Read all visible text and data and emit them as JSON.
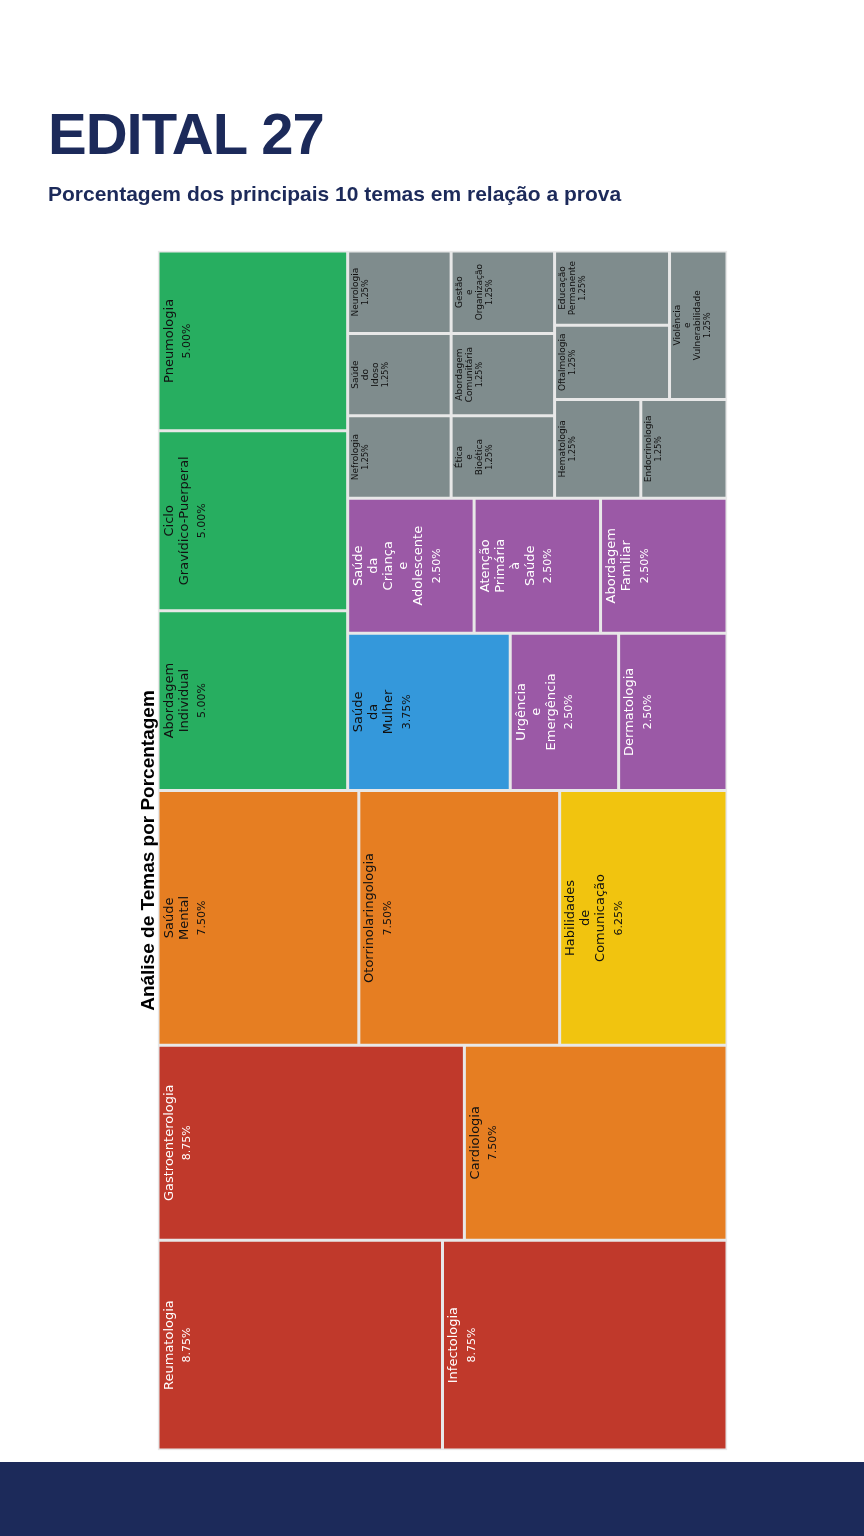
{
  "chart_data": {
    "type": "other",
    "title": "EDITAL 27",
    "subtitle": "Porcentagem dos principais 10 temas em relação a prova",
    "annotations": [
      "Análise de Temas por Porcentagem"
    ],
    "categories": [
      "Reumatologia",
      "Infectologia",
      "Gastroenterologia",
      "Cardiologia",
      "Saúde Mental",
      "Otorrinolaringologia",
      "Habilidades de Comunicação",
      "Abordagem Individual",
      "Ciclo Gravídico-Puerperal",
      "Pneumologia",
      "Saúde da Mulher",
      "Urgência e Emergência",
      "Dermatologia",
      "Saúde da Criança e Adolescente",
      "Atenção Primária à Saúde",
      "Abordagem Familiar",
      "Nefrologia",
      "Saúde do Idoso",
      "Neurologia",
      "Ética e Bioética",
      "Abordagem Comunitária",
      "Gestão e Organização",
      "Hematologia",
      "Endocrinologia",
      "Oftalmologia",
      "Educação Permanente",
      "Violência e Vulnerabilidade"
    ],
    "values": [
      8.75,
      8.75,
      8.75,
      7.5,
      7.5,
      7.5,
      6.25,
      5,
      5,
      5,
      3.75,
      2.5,
      2.5,
      2.5,
      2.5,
      2.5,
      1.25,
      1.25,
      1.25,
      1.25,
      1.25,
      1.25,
      1.25,
      1.25,
      1.25,
      1.25,
      1.25
    ],
    "value_labels": [
      "8.75%",
      "8.75%",
      "8.75%",
      "7.50%",
      "7.50%",
      "7.50%",
      "6.25%",
      "5.00%",
      "5.00%",
      "5.00%",
      "3.75%",
      "2.50%",
      "2.50%",
      "2.50%",
      "2.50%",
      "2.50%",
      "1.25%",
      "1.25%",
      "1.25%",
      "1.25%",
      "1.25%",
      "1.25%",
      "1.25%",
      "1.25%",
      "1.25%",
      "1.25%",
      "1.25%"
    ],
    "colors": [
      "#c0392b",
      "#c0392b",
      "#c0392b",
      "#e67e22",
      "#e67e22",
      "#e67e22",
      "#f1c40f",
      "#27ae60",
      "#27ae60",
      "#27ae60",
      "#3498db",
      "#9b59a6",
      "#9b59a6",
      "#9b59a6",
      "#9b59a6",
      "#9b59a6",
      "#7f8c8d",
      "#7f8c8d",
      "#7f8c8d",
      "#7f8c8d",
      "#7f8c8d",
      "#7f8c8d",
      "#7f8c8d",
      "#7f8c8d",
      "#7f8c8d",
      "#7f8c8d",
      "#7f8c8d"
    ]
  }
}
